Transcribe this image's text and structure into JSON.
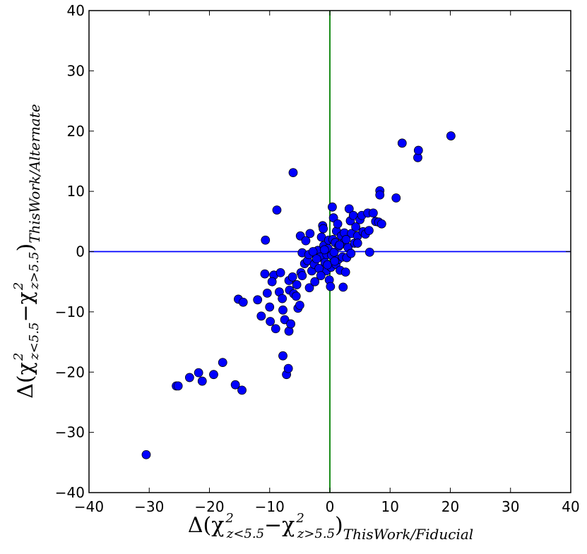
{
  "chart_data": {
    "type": "scatter",
    "title": "",
    "xlabel": {
      "prefix": "Δ(χ",
      "sub1": "z<5.5",
      "mid": "−χ",
      "sub2": "z>5.5",
      "close": ")",
      "sub3": "ThisWork/Fiducial"
    },
    "ylabel": {
      "prefix": "Δ(χ",
      "sub1": "z<5.5",
      "mid": "−χ",
      "sub2": "z>5.5",
      "close": ")",
      "sub3": "ThisWork/Alternate"
    },
    "superscript": "2",
    "xlim": [
      -40,
      40
    ],
    "ylim": [
      -40,
      40
    ],
    "xticks": [
      -40,
      -30,
      -20,
      -10,
      0,
      10,
      20,
      30,
      40
    ],
    "yticks": [
      -40,
      -30,
      -20,
      -10,
      0,
      10,
      20,
      30,
      40
    ],
    "tick_labels_x": [
      "−40",
      "−30",
      "−20",
      "−10",
      "0",
      "10",
      "20",
      "30",
      "40"
    ],
    "tick_labels_y": [
      "−40",
      "−30",
      "−20",
      "−10",
      "0",
      "10",
      "20",
      "30",
      "40"
    ],
    "grid": false,
    "reference_lines": [
      {
        "orientation": "vertical",
        "value": 0,
        "color": "#008000"
      },
      {
        "orientation": "horizontal",
        "value": 0,
        "color": "#0000ff"
      }
    ],
    "marker_color": "#0000ff",
    "series": [
      {
        "points": [
          [
            -30.5,
            -33.7
          ],
          [
            -25.5,
            -22.3
          ],
          [
            -25.2,
            -22.3
          ],
          [
            -23.3,
            -20.9
          ],
          [
            -21.8,
            -20.1
          ],
          [
            -21.2,
            -21.5
          ],
          [
            -19.3,
            -20.4
          ],
          [
            -17.8,
            -18.4
          ],
          [
            -15.7,
            -22.1
          ],
          [
            -14.6,
            -23.0
          ],
          [
            -15.2,
            -7.9
          ],
          [
            -14.4,
            -8.4
          ],
          [
            -11.4,
            -10.7
          ],
          [
            -10.8,
            -3.7
          ],
          [
            -10.7,
            1.9
          ],
          [
            -10.4,
            -6.9
          ],
          [
            -10.0,
            -9.2
          ],
          [
            -9.9,
            -11.6
          ],
          [
            -9.3,
            -3.9
          ],
          [
            -9.0,
            -12.8
          ],
          [
            -8.8,
            6.9
          ],
          [
            -8.4,
            -6.7
          ],
          [
            -8.2,
            -3.5
          ],
          [
            -7.9,
            -7.8
          ],
          [
            -7.8,
            -9.7
          ],
          [
            -7.5,
            -11.3
          ],
          [
            -7.8,
            -17.3
          ],
          [
            -7.2,
            -20.4
          ],
          [
            -6.9,
            -19.4
          ],
          [
            -6.8,
            -13.2
          ],
          [
            -6.5,
            -12.0
          ],
          [
            -6.1,
            13.1
          ],
          [
            -6.7,
            -6.4
          ],
          [
            -6.0,
            -7.0
          ],
          [
            -6.8,
            -4.8
          ],
          [
            -6.2,
            -4.2
          ],
          [
            -5.5,
            -5.5
          ],
          [
            -5.6,
            -7.4
          ],
          [
            -5.3,
            -9.4
          ],
          [
            -5.0,
            -8.9
          ],
          [
            -4.8,
            -3.5
          ],
          [
            -4.6,
            -4.0
          ],
          [
            -4.2,
            -2.0
          ],
          [
            -4.6,
            -0.2
          ],
          [
            -4.9,
            2.6
          ],
          [
            -3.7,
            -1.5
          ],
          [
            -3.5,
            -0.5
          ],
          [
            -3.4,
            -6.0
          ],
          [
            -3.0,
            -3.2
          ],
          [
            -2.6,
            -2.1
          ],
          [
            -2.5,
            -5.0
          ],
          [
            -2.0,
            0.2
          ],
          [
            -1.6,
            -0.9
          ],
          [
            -1.4,
            2.4
          ],
          [
            -1.2,
            4.3
          ],
          [
            -1.0,
            1.0
          ],
          [
            -1.1,
            3.8
          ],
          [
            -0.8,
            -1.8
          ],
          [
            -0.6,
            -3.2
          ],
          [
            -0.5,
            -0.5
          ],
          [
            -0.3,
            0.5
          ],
          [
            -0.2,
            1.9
          ],
          [
            -0.1,
            -4.7
          ],
          [
            0.1,
            -5.8
          ],
          [
            0.2,
            -2.6
          ],
          [
            0.3,
            -0.6
          ],
          [
            0.4,
            7.4
          ],
          [
            0.5,
            2.0
          ],
          [
            0.6,
            5.6
          ],
          [
            0.7,
            -0.1
          ],
          [
            0.9,
            1.5
          ],
          [
            1.0,
            -2.1
          ],
          [
            1.1,
            3.4
          ],
          [
            1.3,
            4.6
          ],
          [
            1.4,
            -1.3
          ],
          [
            1.5,
            0.9
          ],
          [
            1.7,
            -3.1
          ],
          [
            1.9,
            2.6
          ],
          [
            2.1,
            -0.9
          ],
          [
            2.2,
            1.4
          ],
          [
            2.4,
            3.1
          ],
          [
            2.2,
            -5.9
          ],
          [
            2.6,
            -3.4
          ],
          [
            2.8,
            -1.0
          ],
          [
            3.0,
            0.7
          ],
          [
            3.2,
            7.1
          ],
          [
            3.4,
            5.1
          ],
          [
            3.6,
            3.0
          ],
          [
            3.9,
            6.0
          ],
          [
            4.1,
            1.4
          ],
          [
            4.3,
            4.1
          ],
          [
            4.6,
            2.6
          ],
          [
            5.0,
            5.3
          ],
          [
            5.3,
            6.0
          ],
          [
            5.5,
            3.3
          ],
          [
            5.9,
            2.9
          ],
          [
            6.3,
            6.4
          ],
          [
            6.5,
            3.5
          ],
          [
            6.6,
            -0.1
          ],
          [
            7.2,
            6.4
          ],
          [
            7.6,
            5.0
          ],
          [
            8.1,
            4.9
          ],
          [
            8.3,
            10.1
          ],
          [
            8.3,
            9.4
          ],
          [
            8.6,
            4.6
          ],
          [
            11.0,
            8.9
          ],
          [
            12.0,
            18.0
          ],
          [
            14.6,
            15.6
          ],
          [
            14.7,
            16.8
          ],
          [
            20.1,
            19.2
          ],
          [
            -12.0,
            -8.0
          ],
          [
            -9.6,
            -5.0
          ],
          [
            -4.0,
            1.8
          ],
          [
            -3.3,
            3.0
          ],
          [
            -1.8,
            -2.8
          ],
          [
            -2.8,
            0.0
          ],
          [
            -1.5,
            -4.0
          ],
          [
            -0.4,
            -2.2
          ],
          [
            1.6,
            1.1
          ],
          [
            2.7,
            2.0
          ],
          [
            4.6,
            1.4
          ],
          [
            -0.9,
            0.3
          ],
          [
            -2.2,
            -1.2
          ],
          [
            3.5,
            -0.3
          ],
          [
            0.8,
            -1.6
          ]
        ]
      }
    ]
  }
}
